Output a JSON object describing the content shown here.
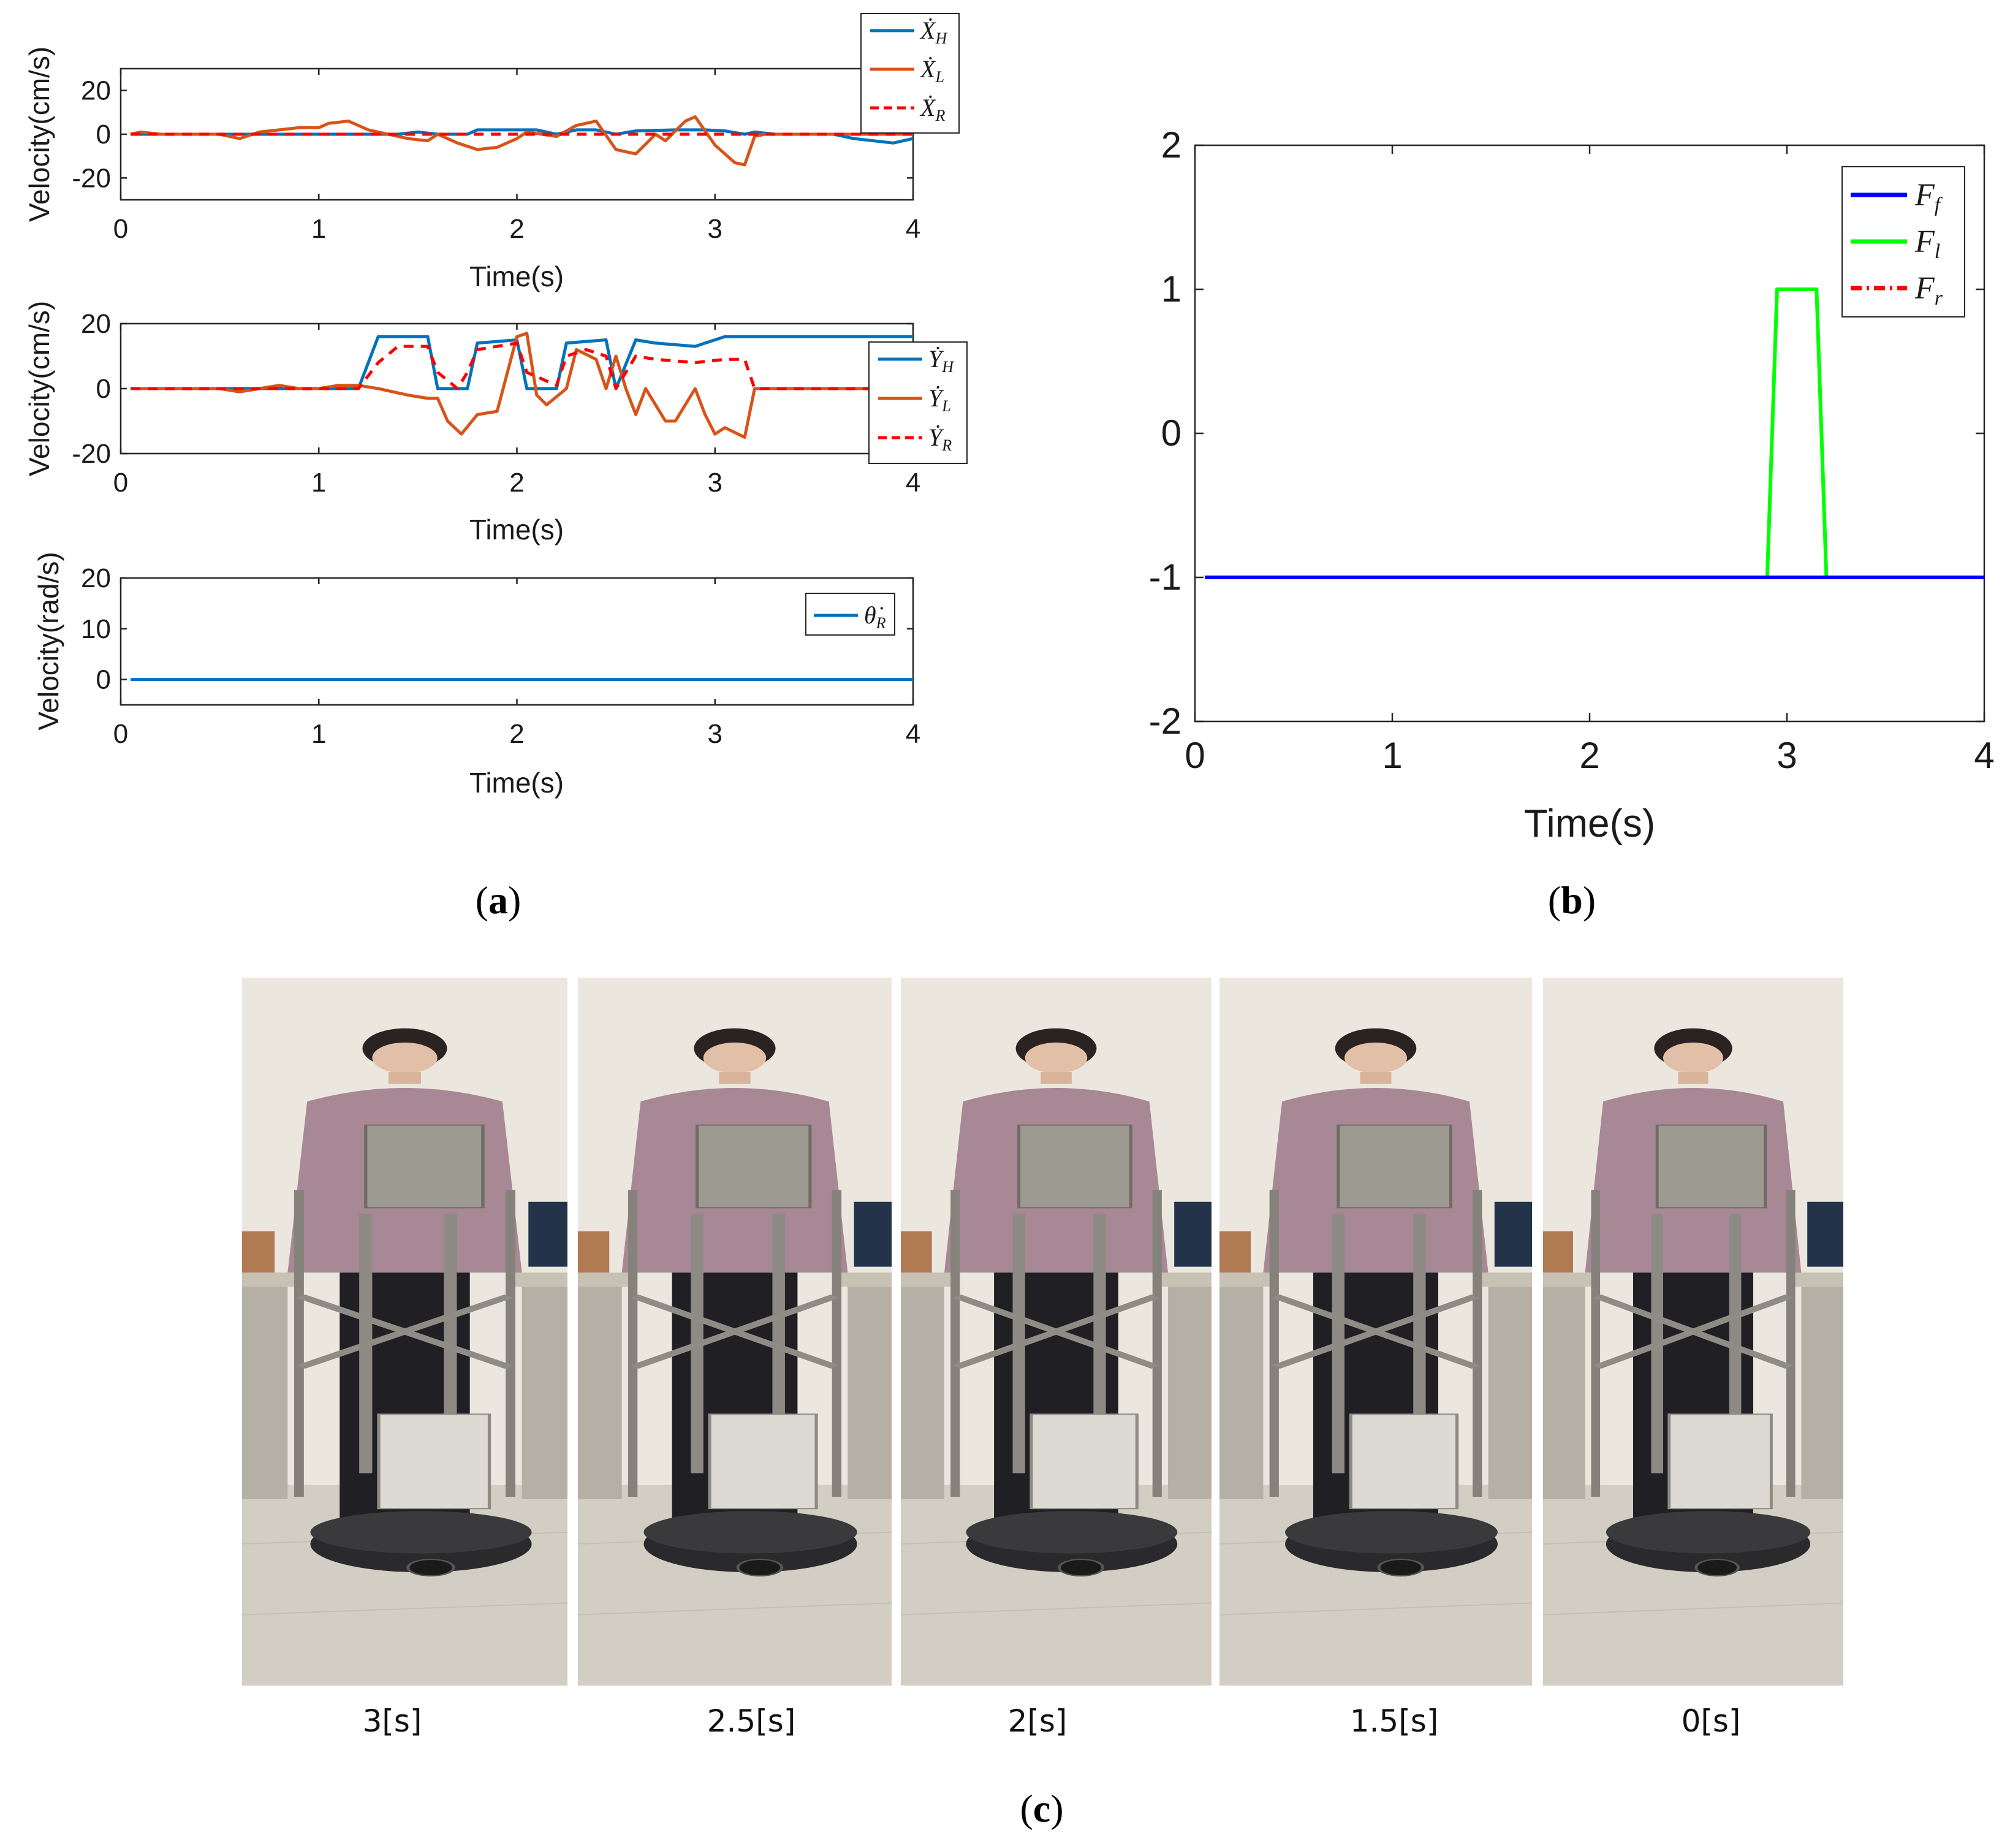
{
  "panel_labels": {
    "a": "a",
    "b": "b",
    "c": "c"
  },
  "chart_data": [
    {
      "id": "a1",
      "type": "line",
      "xlabel": "Time(s)",
      "ylabel": "Velocity(cm/s)",
      "xlim": [
        0,
        4
      ],
      "ylim": [
        -30,
        30
      ],
      "xticks": [
        0,
        1,
        2,
        3,
        4
      ],
      "yticks": [
        -20,
        0,
        20
      ],
      "legend": "top-right",
      "series": [
        {
          "name": "X_H",
          "label": "Ẋ",
          "sub": "H",
          "color": "#0072BD",
          "dash": "solid",
          "points": [
            [
              0.05,
              0
            ],
            [
              0.3,
              0
            ],
            [
              0.6,
              0
            ],
            [
              0.9,
              0
            ],
            [
              1.2,
              0
            ],
            [
              1.4,
              0
            ],
            [
              1.5,
              1
            ],
            [
              1.6,
              0
            ],
            [
              1.75,
              0
            ],
            [
              1.8,
              2
            ],
            [
              2.0,
              2
            ],
            [
              2.1,
              2
            ],
            [
              2.2,
              0
            ],
            [
              2.3,
              2
            ],
            [
              2.4,
              2
            ],
            [
              2.5,
              0
            ],
            [
              2.6,
              1.5
            ],
            [
              2.8,
              2
            ],
            [
              2.95,
              2
            ],
            [
              3.05,
              1.5
            ],
            [
              3.15,
              0
            ],
            [
              3.2,
              1
            ],
            [
              3.3,
              0
            ],
            [
              3.6,
              0
            ],
            [
              3.7,
              -2
            ],
            [
              3.8,
              -3
            ],
            [
              3.9,
              -4
            ],
            [
              4.0,
              -2
            ]
          ]
        },
        {
          "name": "X_L",
          "label": "Ẋ",
          "sub": "L",
          "color": "#D95319",
          "dash": "solid",
          "points": [
            [
              0.05,
              0
            ],
            [
              0.1,
              1
            ],
            [
              0.2,
              0
            ],
            [
              0.5,
              0
            ],
            [
              0.6,
              -2
            ],
            [
              0.7,
              1
            ],
            [
              0.8,
              2
            ],
            [
              0.9,
              3
            ],
            [
              1.0,
              3
            ],
            [
              1.05,
              5
            ],
            [
              1.15,
              6
            ],
            [
              1.25,
              2
            ],
            [
              1.35,
              0
            ],
            [
              1.45,
              -2
            ],
            [
              1.55,
              -3
            ],
            [
              1.6,
              0
            ],
            [
              1.7,
              -4
            ],
            [
              1.8,
              -7
            ],
            [
              1.9,
              -6
            ],
            [
              2.0,
              -2
            ],
            [
              2.05,
              1
            ],
            [
              2.2,
              -1
            ],
            [
              2.3,
              4
            ],
            [
              2.4,
              6
            ],
            [
              2.5,
              -7
            ],
            [
              2.6,
              -9
            ],
            [
              2.7,
              0
            ],
            [
              2.75,
              -3
            ],
            [
              2.85,
              6
            ],
            [
              2.9,
              8
            ],
            [
              3.0,
              -5
            ],
            [
              3.1,
              -13
            ],
            [
              3.15,
              -14
            ],
            [
              3.2,
              -1
            ],
            [
              3.25,
              0
            ],
            [
              4.0,
              0
            ]
          ]
        },
        {
          "name": "X_R",
          "label": "Ẋ",
          "sub": "R",
          "color": "#FF0000",
          "dash": "dashed",
          "points": [
            [
              0.05,
              0
            ],
            [
              4.0,
              0
            ]
          ]
        }
      ]
    },
    {
      "id": "a2",
      "type": "line",
      "xlabel": "Time(s)",
      "ylabel": "Velocity(cm/s)",
      "xlim": [
        0,
        4
      ],
      "ylim": [
        -20,
        20
      ],
      "xticks": [
        0,
        1,
        2,
        3,
        4
      ],
      "yticks": [
        -20,
        0,
        20
      ],
      "legend": "right",
      "series": [
        {
          "name": "Y_H",
          "label": "Ẏ",
          "sub": "H",
          "color": "#0072BD",
          "dash": "solid",
          "points": [
            [
              0.05,
              0
            ],
            [
              0.5,
              0
            ],
            [
              0.7,
              0
            ],
            [
              0.8,
              0
            ],
            [
              1.0,
              0
            ],
            [
              1.2,
              0
            ],
            [
              1.3,
              16
            ],
            [
              1.55,
              16
            ],
            [
              1.6,
              0
            ],
            [
              1.75,
              0
            ],
            [
              1.8,
              14
            ],
            [
              2.0,
              15
            ],
            [
              2.05,
              0
            ],
            [
              2.2,
              0
            ],
            [
              2.25,
              14
            ],
            [
              2.45,
              15
            ],
            [
              2.5,
              0
            ],
            [
              2.6,
              15
            ],
            [
              2.7,
              14
            ],
            [
              2.9,
              13
            ],
            [
              2.95,
              14
            ],
            [
              3.05,
              16
            ],
            [
              4.0,
              16
            ]
          ]
        },
        {
          "name": "Y_L",
          "label": "Ẏ",
          "sub": "L",
          "color": "#D95319",
          "dash": "solid",
          "points": [
            [
              0.05,
              0
            ],
            [
              0.5,
              0
            ],
            [
              0.6,
              -1
            ],
            [
              0.7,
              0
            ],
            [
              0.8,
              1
            ],
            [
              0.9,
              0
            ],
            [
              1.0,
              0
            ],
            [
              1.1,
              1
            ],
            [
              1.2,
              1
            ],
            [
              1.3,
              0
            ],
            [
              1.45,
              -2
            ],
            [
              1.55,
              -3
            ],
            [
              1.6,
              -3
            ],
            [
              1.65,
              -10
            ],
            [
              1.72,
              -14
            ],
            [
              1.8,
              -8
            ],
            [
              1.9,
              -7
            ],
            [
              2.0,
              16
            ],
            [
              2.05,
              17
            ],
            [
              2.1,
              -2
            ],
            [
              2.15,
              -5
            ],
            [
              2.25,
              0
            ],
            [
              2.3,
              12
            ],
            [
              2.4,
              9
            ],
            [
              2.45,
              0
            ],
            [
              2.5,
              10
            ],
            [
              2.55,
              0
            ],
            [
              2.6,
              -8
            ],
            [
              2.65,
              0
            ],
            [
              2.75,
              -10
            ],
            [
              2.8,
              -10
            ],
            [
              2.9,
              0
            ],
            [
              2.95,
              -8
            ],
            [
              3.0,
              -14
            ],
            [
              3.05,
              -12
            ],
            [
              3.15,
              -15
            ],
            [
              3.2,
              0
            ],
            [
              4.0,
              0
            ]
          ]
        },
        {
          "name": "Y_R",
          "label": "Ẏ",
          "sub": "R",
          "color": "#FF0000",
          "dash": "dashed",
          "points": [
            [
              0.05,
              0
            ],
            [
              1.2,
              0
            ],
            [
              1.3,
              8
            ],
            [
              1.4,
              13
            ],
            [
              1.55,
              13
            ],
            [
              1.6,
              5
            ],
            [
              1.7,
              0
            ],
            [
              1.75,
              5
            ],
            [
              1.8,
              12
            ],
            [
              2.0,
              14
            ],
            [
              2.05,
              5
            ],
            [
              2.2,
              1
            ],
            [
              2.25,
              10
            ],
            [
              2.35,
              12
            ],
            [
              2.45,
              10
            ],
            [
              2.5,
              0
            ],
            [
              2.6,
              10
            ],
            [
              2.7,
              9
            ],
            [
              2.9,
              8
            ],
            [
              3.05,
              9
            ],
            [
              3.15,
              9
            ],
            [
              3.2,
              0
            ],
            [
              4.0,
              0
            ]
          ]
        }
      ]
    },
    {
      "id": "a3",
      "type": "line",
      "xlabel": "Time(s)",
      "ylabel": "Velocity(rad/s)",
      "xlim": [
        0,
        4
      ],
      "ylim": [
        -5,
        20
      ],
      "xticks": [
        0,
        1,
        2,
        3,
        4
      ],
      "yticks": [
        0,
        10,
        20
      ],
      "legend": "right",
      "series": [
        {
          "name": "theta_R",
          "label": "θ̇",
          "sub": "R",
          "color": "#0072BD",
          "dash": "solid",
          "points": [
            [
              0.05,
              0
            ],
            [
              4.0,
              0
            ]
          ]
        }
      ]
    },
    {
      "id": "b",
      "type": "line",
      "xlabel": "Time(s)",
      "ylabel": "",
      "xlim": [
        0,
        4
      ],
      "ylim": [
        -2,
        2
      ],
      "xticks": [
        0,
        1,
        2,
        3,
        4
      ],
      "yticks": [
        -2,
        -1,
        0,
        1,
        2
      ],
      "legend": "top-right",
      "series": [
        {
          "name": "F_f",
          "label": "F",
          "sub": "f",
          "color": "#0000FF",
          "dash": "solid",
          "points": [
            [
              0.05,
              -1
            ],
            [
              4.0,
              -1
            ]
          ]
        },
        {
          "name": "F_l",
          "label": "F",
          "sub": "l",
          "color": "#00FF00",
          "dash": "solid",
          "points": [
            [
              0.05,
              -1
            ],
            [
              2.9,
              -1
            ],
            [
              2.95,
              1
            ],
            [
              3.15,
              1
            ],
            [
              3.2,
              -1
            ],
            [
              4.0,
              -1
            ]
          ]
        },
        {
          "name": "F_r",
          "label": "F",
          "sub": "r",
          "color": "#FF0000",
          "dash": "dashdot",
          "points": [
            [
              0.05,
              -1
            ],
            [
              4.0,
              -1
            ]
          ]
        }
      ]
    }
  ],
  "photos": {
    "captions": [
      "3[s]",
      "2.5[s]",
      "2[s]",
      "1.5[s]",
      "0[s]"
    ]
  }
}
